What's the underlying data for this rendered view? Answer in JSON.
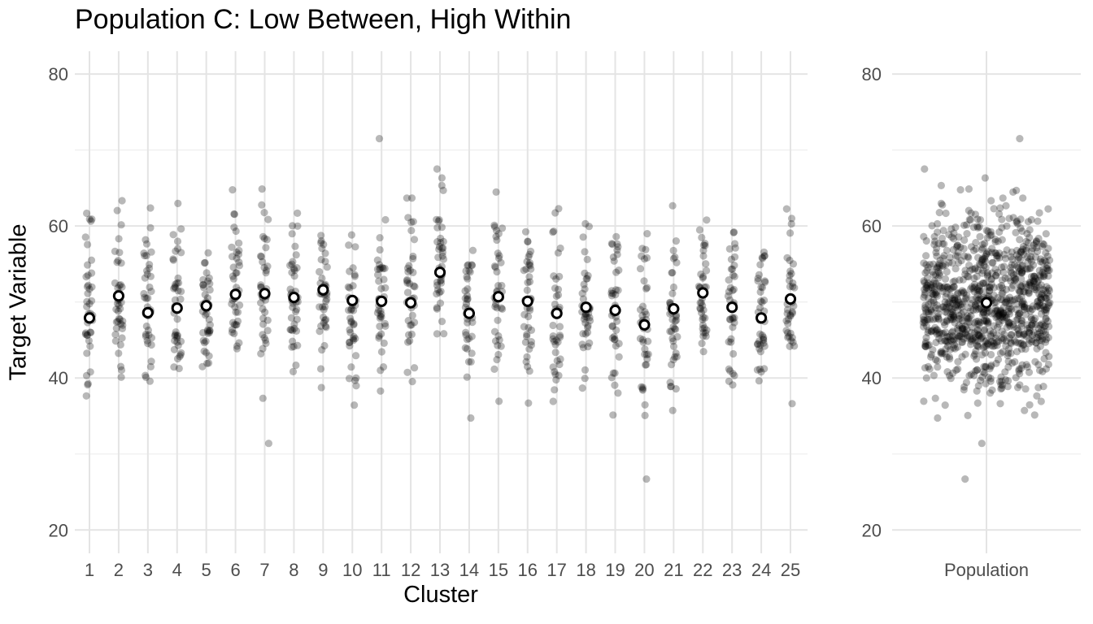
{
  "title": "Population C: Low Between, High Within",
  "axes": {
    "x_label": "Cluster",
    "y_label": "Target Variable",
    "y_tick_labels": [
      "20",
      "40",
      "60",
      "80"
    ],
    "y_tick_values": [
      20,
      40,
      60,
      80
    ],
    "y_minor_gridline_values": [
      30,
      50,
      70
    ],
    "x_tick_labels": [
      "1",
      "2",
      "3",
      "4",
      "5",
      "6",
      "7",
      "8",
      "9",
      "10",
      "11",
      "12",
      "13",
      "14",
      "15",
      "16",
      "17",
      "18",
      "19",
      "20",
      "21",
      "22",
      "23",
      "24",
      "25"
    ],
    "population_tick_label": "Population"
  },
  "style": {
    "background": "#ffffff",
    "grid_major_color": "#e4e4e4",
    "grid_minor_color": "#efefef",
    "point_color": "#000000",
    "point_opacity": 0.28,
    "mean_fill": "#ffffff",
    "mean_stroke": "#000000",
    "tick_text_color": "#4d4d4d",
    "title_color": "#000000"
  },
  "chart_data": [
    {
      "type": "scatter",
      "panel": "clusters",
      "title": "Population C: Low Between, High Within",
      "xlabel": "Cluster",
      "ylabel": "Target Variable",
      "x_categories": [
        1,
        2,
        3,
        4,
        5,
        6,
        7,
        8,
        9,
        10,
        11,
        12,
        13,
        14,
        15,
        16,
        17,
        18,
        19,
        20,
        21,
        22,
        23,
        24,
        25
      ],
      "y_ticks": [
        20,
        40,
        60,
        80
      ],
      "ylim": [
        17,
        83
      ],
      "grid": "horizontal major+minor, vertical major per cluster",
      "legend_position": "none",
      "points_per_cluster": 40,
      "within_cluster_sd": 5.4,
      "point_style": "jittered, black, alpha 0.28",
      "mean_marker": "open circle, white fill, black outline",
      "cluster_means": [
        47.9,
        50.8,
        48.6,
        49.2,
        49.5,
        51.0,
        51.1,
        50.6,
        51.6,
        50.2,
        50.1,
        49.9,
        53.9,
        48.5,
        50.7,
        50.1,
        48.5,
        49.3,
        48.9,
        47.0,
        49.1,
        51.2,
        49.3,
        47.9,
        50.4
      ],
      "notable_outliers": [
        {
          "cluster": 7,
          "value": 31.4
        },
        {
          "cluster": 11,
          "value": 71.5
        },
        {
          "cluster": 13,
          "value": 67.5
        },
        {
          "cluster": 20,
          "value": 26.7
        }
      ],
      "value_range_typical": [
        34,
        67
      ]
    },
    {
      "type": "scatter",
      "panel": "population",
      "x_categories": [
        "Population"
      ],
      "y_ticks": [
        20,
        40,
        60,
        80
      ],
      "ylim": [
        17,
        83
      ],
      "n_points": 1000,
      "mean": 49.9,
      "point_style": "jittered, black, alpha 0.28",
      "mean_marker": "open circle, white fill, black outline",
      "description": "pooled points from all 25 clusters"
    }
  ]
}
